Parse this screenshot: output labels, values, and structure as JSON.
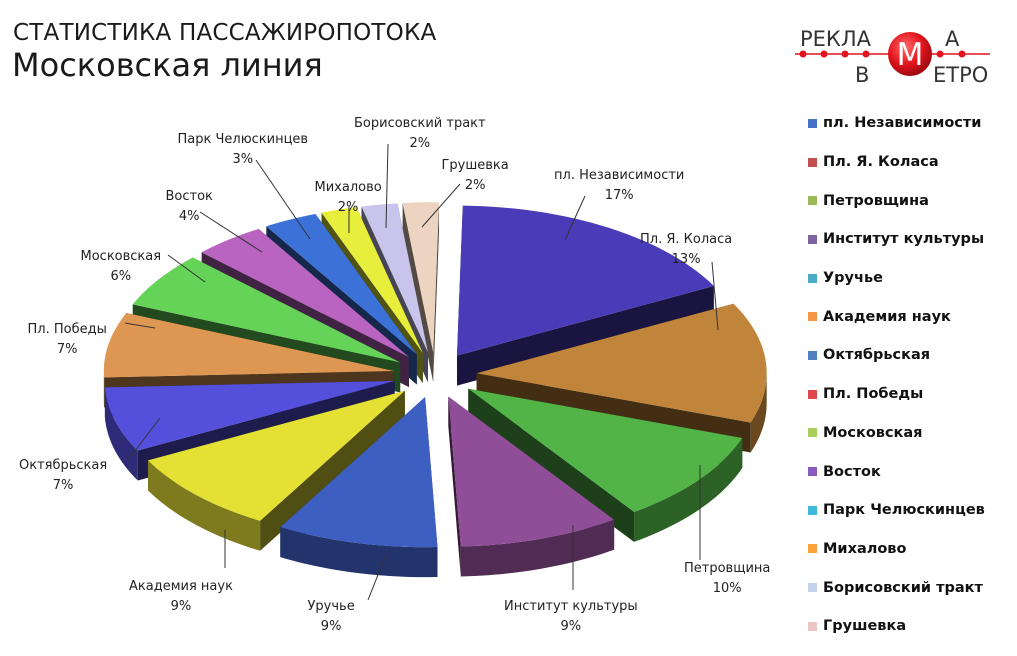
{
  "header": {
    "title_top": "СТАТИСТИКА ПАССАЖИРОПОТОКА",
    "title_main": "Московская линия"
  },
  "logo": {
    "text_top": "РЕКЛА",
    "text_top_right": "А",
    "text_bottom_left": "В",
    "text_bottom_right": "ЕТРО",
    "center_letter": "М",
    "accent_color": "#e3141d"
  },
  "chart_data": {
    "type": "pie",
    "title": "СТАТИСТИКА ПАССАЖИРОПОТОКА — Московская линия",
    "style": "3d-exploded",
    "legend_position": "right",
    "categories": [
      "пл. Независимости",
      "Пл. Я. Коласа",
      "Петровщина",
      "Институт культуры",
      "Уручье",
      "Академия наук",
      "Октябрьская",
      "Пл. Победы",
      "Московская",
      "Восток",
      "Парк Челюскинцев",
      "Михалово",
      "Борисовский тракт",
      "Грушевка"
    ],
    "values": [
      17,
      13,
      10,
      9,
      9,
      9,
      7,
      7,
      6,
      4,
      3,
      2,
      2,
      2
    ],
    "unit": "%",
    "legend_colors": [
      "#4472c4",
      "#c0504d",
      "#9bbb59",
      "#8064a2",
      "#4bacc6",
      "#f79646",
      "#4f81bd",
      "#e0474c",
      "#a9d05a",
      "#8a5cc0",
      "#3fb8dc",
      "#f9a23c",
      "#c5d3ea",
      "#eec4c4"
    ],
    "slice_colors": [
      "#4a3cb8",
      "#c0843a",
      "#52b347",
      "#914e98",
      "#3d5fc2",
      "#e4e034",
      "#5450dc",
      "#de9752",
      "#65d258",
      "#b864c0",
      "#3c72d8",
      "#e8ee3c",
      "#c8c4ec",
      "#ecd4c0"
    ],
    "data_labels": [
      "пл. Независимости 17%",
      "Пл. Я. Коласа 13%",
      "Петровщина 10%",
      "Институт культуры 9%",
      "Уручье 9%",
      "Академия наук 9%",
      "Октябрьская 7%",
      "Пл. Победы 7%",
      "Московская 6%",
      "Восток 4%",
      "Парк Челюскинцев 3%",
      "Михалово 2%",
      "Борисовский тракт 2%",
      "Грушевка 2%"
    ]
  },
  "labels": [
    {
      "name": "пл. Независимости",
      "pct": "17%"
    },
    {
      "name": "Пл. Я. Коласа",
      "pct": "13%"
    },
    {
      "name": "Петровщина",
      "pct": "10%"
    },
    {
      "name": "Институт культуры",
      "pct": "9%"
    },
    {
      "name": "Уручье",
      "pct": "9%"
    },
    {
      "name": "Академия наук",
      "pct": "9%"
    },
    {
      "name": "Октябрьская",
      "pct": "7%"
    },
    {
      "name": "Пл. Победы",
      "pct": "7%"
    },
    {
      "name": "Московская",
      "pct": "6%"
    },
    {
      "name": "Восток",
      "pct": "4%"
    },
    {
      "name": "Парк Челюскинцев",
      "pct": "3%"
    },
    {
      "name": "Михалово",
      "pct": "2%"
    },
    {
      "name": "Борисовский тракт",
      "pct": "2%"
    },
    {
      "name": "Грушевка",
      "pct": "2%"
    }
  ]
}
